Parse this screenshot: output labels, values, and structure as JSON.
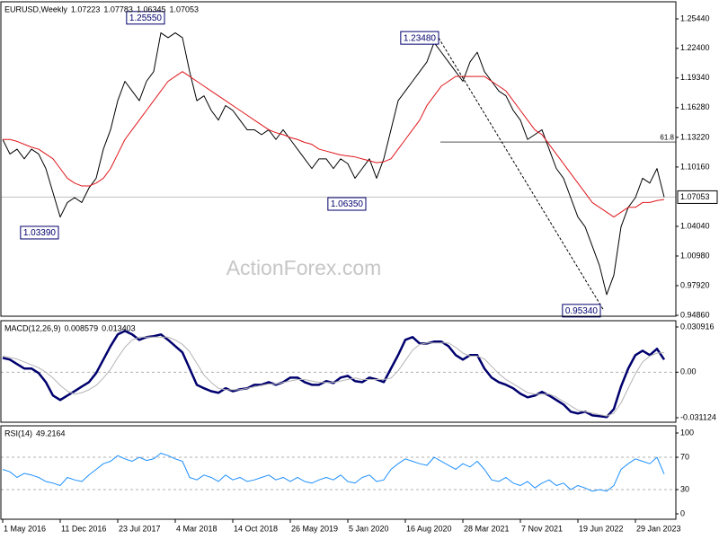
{
  "chart_data": [
    {
      "type": "line",
      "title": "EURUSD,Weekly",
      "last_bar": {
        "open": 1.07223,
        "high": 1.07783,
        "low": 1.06345
      },
      "watermark": "ActionForex.com",
      "ylim": [
        0.9477,
        1.272
      ],
      "yticks": [
        {
          "value": 1.2544,
          "label": "1.25440"
        },
        {
          "value": 1.224,
          "label": "1.22400"
        },
        {
          "value": 1.1934,
          "label": "1.19340"
        },
        {
          "value": 1.1628,
          "label": "1.16280"
        },
        {
          "value": 1.1322,
          "label": "1.13220"
        },
        {
          "value": 1.1016,
          "label": "1.10160"
        },
        {
          "value": 1.0404,
          "label": "1.04040"
        },
        {
          "value": 1.0098,
          "label": "1.00980"
        },
        {
          "value": 0.9792,
          "label": "0.97920"
        },
        {
          "value": 0.9486,
          "label": "0.94860"
        }
      ],
      "price_line": true,
      "fib_level": {
        "value": 1.1273,
        "label": "61.8"
      },
      "annotations": [
        {
          "value": 1.2555,
          "label": "1.25550"
        },
        {
          "value": 1.0339,
          "label": "1.03390"
        },
        {
          "value": 1.0635,
          "label": "1.06350"
        },
        {
          "value": 1.2348,
          "label": "1.23480"
        },
        {
          "value": 0.9534,
          "label": "0.95340"
        }
      ],
      "series": [
        {
          "color": "#000000",
          "width": 1,
          "values": [
            1.13,
            1.115,
            1.12,
            1.11,
            1.12,
            1.115,
            1.1,
            1.075,
            1.05,
            1.065,
            1.07,
            1.065,
            1.08,
            1.09,
            1.12,
            1.14,
            1.17,
            1.19,
            1.18,
            1.17,
            1.19,
            1.2,
            1.24,
            1.235,
            1.24,
            1.235,
            1.2,
            1.17,
            1.175,
            1.16,
            1.15,
            1.165,
            1.16,
            1.15,
            1.14,
            1.14,
            1.135,
            1.14,
            1.13,
            1.14,
            1.13,
            1.12,
            1.11,
            1.1,
            1.11,
            1.11,
            1.1,
            1.11,
            1.105,
            1.09,
            1.1,
            1.11,
            1.09,
            1.11,
            1.14,
            1.17,
            1.18,
            1.19,
            1.2,
            1.21,
            1.23,
            1.22,
            1.21,
            1.2,
            1.19,
            1.21,
            1.22,
            1.2,
            1.19,
            1.18,
            1.175,
            1.16,
            1.15,
            1.13,
            1.135,
            1.14,
            1.12,
            1.1,
            1.09,
            1.07,
            1.05,
            1.04,
            1.02,
            1.0,
            0.97,
            0.99,
            1.04,
            1.06,
            1.07,
            1.09,
            1.085,
            1.1,
            1.07053
          ]
        },
        {
          "color": "#e0161b",
          "width": 1,
          "values": [
            1.13,
            1.13,
            1.128,
            1.125,
            1.122,
            1.12,
            1.115,
            1.11,
            1.1,
            1.09,
            1.085,
            1.082,
            1.082,
            1.085,
            1.09,
            1.1,
            1.115,
            1.13,
            1.14,
            1.15,
            1.16,
            1.17,
            1.18,
            1.19,
            1.195,
            1.2,
            1.195,
            1.19,
            1.185,
            1.18,
            1.175,
            1.17,
            1.165,
            1.16,
            1.155,
            1.15,
            1.145,
            1.14,
            1.137,
            1.135,
            1.132,
            1.13,
            1.127,
            1.125,
            1.12,
            1.118,
            1.116,
            1.114,
            1.113,
            1.112,
            1.11,
            1.108,
            1.106,
            1.107,
            1.11,
            1.12,
            1.13,
            1.14,
            1.15,
            1.165,
            1.175,
            1.185,
            1.19,
            1.195,
            1.195,
            1.195,
            1.195,
            1.195,
            1.19,
            1.185,
            1.18,
            1.17,
            1.16,
            1.15,
            1.14,
            1.135,
            1.125,
            1.115,
            1.105,
            1.095,
            1.085,
            1.075,
            1.065,
            1.06,
            1.055,
            1.05,
            1.055,
            1.06,
            1.06,
            1.065,
            1.065,
            1.067,
            1.068
          ]
        }
      ]
    },
    {
      "type": "line",
      "title": "MACD(12,26,9)",
      "ylim": [
        -0.0342,
        0.0352
      ],
      "yticks": [
        0.030916,
        {
          "value": 0,
          "label": "0.00"
        },
        -0.031124
      ],
      "levels": [
        0
      ],
      "series": [
        {
          "color": "#00006e",
          "width": 2.5,
          "values": [
            0.0098,
            0.0086,
            0.0055,
            0.0025,
            0.0025,
            -0.0006,
            -0.0068,
            -0.016,
            -0.019,
            -0.016,
            -0.013,
            -0.0098,
            -0.0068,
            -0.0006,
            0.0086,
            0.0178,
            0.0258,
            0.0282,
            0.0258,
            0.0221,
            0.024,
            0.0246,
            0.0258,
            0.0221,
            0.0178,
            0.0135,
            0.0025,
            -0.0086,
            -0.011,
            -0.013,
            -0.0141,
            -0.011,
            -0.013,
            -0.0117,
            -0.011,
            -0.0086,
            -0.0086,
            -0.0068,
            -0.0086,
            -0.0068,
            -0.0037,
            -0.0037,
            -0.0068,
            -0.0086,
            -0.0086,
            -0.0061,
            -0.0074,
            -0.0037,
            -0.0025,
            -0.0061,
            -0.0068,
            -0.0037,
            -0.0049,
            -0.0068,
            0.0025,
            0.0117,
            0.0221,
            0.024,
            0.0196,
            0.0196,
            0.0209,
            0.0209,
            0.0178,
            0.0117,
            0.0086,
            0.0117,
            0.0117,
            0.0025,
            -0.0037,
            -0.0068,
            -0.0086,
            -0.011,
            -0.0147,
            -0.0172,
            -0.016,
            -0.0135,
            -0.016,
            -0.019,
            -0.0221,
            -0.027,
            -0.0282,
            -0.027,
            -0.0295,
            -0.0301,
            -0.0307,
            -0.0252,
            -0.0098,
            0.0025,
            0.0117,
            0.0147,
            0.0117,
            0.016,
            0.008579
          ]
        },
        {
          "color": "#b4b4b4",
          "width": 1,
          "values": [
            0.011,
            0.01,
            0.009,
            0.007,
            0.005,
            0.003,
            0,
            -0.004,
            -0.009,
            -0.013,
            -0.015,
            -0.014,
            -0.012,
            -0.009,
            -0.004,
            0.002,
            0.01,
            0.017,
            0.022,
            0.024,
            0.024,
            0.024,
            0.024,
            0.024,
            0.022,
            0.019,
            0.014,
            0.006,
            -0.002,
            -0.007,
            -0.011,
            -0.012,
            -0.012,
            -0.012,
            -0.011,
            -0.01,
            -0.009,
            -0.008,
            -0.008,
            -0.007,
            -0.006,
            -0.005,
            -0.005,
            -0.006,
            -0.007,
            -0.007,
            -0.007,
            -0.006,
            -0.005,
            -0.004,
            -0.005,
            -0.005,
            -0.005,
            -0.005,
            -0.004,
            0.001,
            0.008,
            0.015,
            0.019,
            0.02,
            0.02,
            0.02,
            0.02,
            0.017,
            0.013,
            0.011,
            0.011,
            0.009,
            0.004,
            -0.001,
            -0.005,
            -0.008,
            -0.011,
            -0.014,
            -0.015,
            -0.015,
            -0.015,
            -0.017,
            -0.02,
            -0.023,
            -0.026,
            -0.027,
            -0.028,
            -0.029,
            -0.03,
            -0.028,
            -0.021,
            -0.011,
            -0.001,
            0.007,
            0.011,
            0.013,
            0.013403
          ]
        }
      ]
    },
    {
      "type": "line",
      "title": "RSI(14)",
      "ylim": [
        -6.7,
        108.9
      ],
      "yticks": [
        100,
        70,
        30,
        0
      ],
      "levels": [
        70,
        30
      ],
      "categories": [
        "1 May 2016",
        null,
        null,
        null,
        null,
        null,
        null,
        null,
        "11 Dec 2016",
        null,
        null,
        null,
        null,
        null,
        null,
        null,
        "23 Jul 2017",
        null,
        null,
        null,
        null,
        null,
        null,
        null,
        "4 Mar 2018",
        null,
        null,
        null,
        null,
        null,
        null,
        null,
        "14 Oct 2018",
        null,
        null,
        null,
        null,
        null,
        null,
        null,
        "26 May 2019",
        null,
        null,
        null,
        null,
        null,
        null,
        null,
        "5 Jan 2020",
        null,
        null,
        null,
        null,
        null,
        null,
        null,
        "16 Aug 2020",
        null,
        null,
        null,
        null,
        null,
        null,
        null,
        "28 Mar 2021",
        null,
        null,
        null,
        null,
        null,
        null,
        null,
        "7 Nov 2021",
        null,
        null,
        null,
        null,
        null,
        null,
        null,
        "19 Jun 2022",
        null,
        null,
        null,
        null,
        null,
        null,
        null,
        "29 Jan 2023",
        null,
        null,
        null,
        null
      ],
      "series": [
        {
          "color": "#1e90ff",
          "width": 1,
          "values": [
            55,
            52,
            45,
            50,
            48,
            45,
            40,
            38,
            35,
            45,
            42,
            40,
            48,
            55,
            62,
            65,
            72,
            68,
            65,
            70,
            66,
            68,
            75,
            72,
            68,
            65,
            45,
            42,
            48,
            45,
            40,
            48,
            42,
            45,
            40,
            42,
            45,
            48,
            42,
            45,
            40,
            45,
            40,
            38,
            42,
            45,
            42,
            48,
            40,
            38,
            45,
            48,
            40,
            42,
            55,
            62,
            68,
            65,
            62,
            60,
            70,
            65,
            60,
            55,
            62,
            58,
            65,
            55,
            42,
            40,
            45,
            38,
            35,
            40,
            32,
            38,
            42,
            35,
            38,
            30,
            35,
            32,
            28,
            30,
            28,
            35,
            55,
            62,
            68,
            65,
            62,
            70,
            49.2164
          ]
        }
      ]
    }
  ]
}
